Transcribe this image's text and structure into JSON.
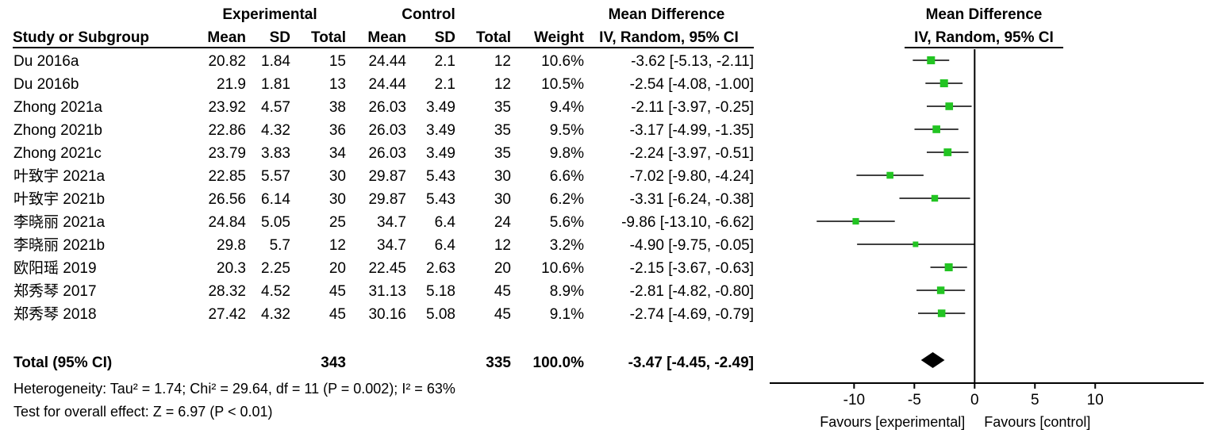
{
  "headers": {
    "experimental": "Experimental",
    "control": "Control",
    "mean_difference": "Mean Difference",
    "plot_title": "Mean Difference",
    "study": "Study or Subgroup",
    "mean": "Mean",
    "sd": "SD",
    "total": "Total",
    "weight": "Weight",
    "method": "IV, Random, 95% CI"
  },
  "studies": [
    {
      "name": "Du 2016a",
      "e_mean": "20.82",
      "e_sd": "1.84",
      "e_total": "15",
      "c_mean": "24.44",
      "c_sd": "2.1",
      "c_total": "12",
      "weight": "10.6%",
      "ci_text": "-3.62 [-5.13, -2.11]"
    },
    {
      "name": "Du 2016b",
      "e_mean": "21.9",
      "e_sd": "1.81",
      "e_total": "13",
      "c_mean": "24.44",
      "c_sd": "2.1",
      "c_total": "12",
      "weight": "10.5%",
      "ci_text": "-2.54 [-4.08, -1.00]"
    },
    {
      "name": "Zhong 2021a",
      "e_mean": "23.92",
      "e_sd": "4.57",
      "e_total": "38",
      "c_mean": "26.03",
      "c_sd": "3.49",
      "c_total": "35",
      "weight": "9.4%",
      "ci_text": "-2.11 [-3.97, -0.25]"
    },
    {
      "name": "Zhong 2021b",
      "e_mean": "22.86",
      "e_sd": "4.32",
      "e_total": "36",
      "c_mean": "26.03",
      "c_sd": "3.49",
      "c_total": "35",
      "weight": "9.5%",
      "ci_text": "-3.17 [-4.99, -1.35]"
    },
    {
      "name": "Zhong 2021c",
      "e_mean": "23.79",
      "e_sd": "3.83",
      "e_total": "34",
      "c_mean": "26.03",
      "c_sd": "3.49",
      "c_total": "35",
      "weight": "9.8%",
      "ci_text": "-2.24 [-3.97, -0.51]"
    },
    {
      "name": "叶致宇 2021a",
      "e_mean": "22.85",
      "e_sd": "5.57",
      "e_total": "30",
      "c_mean": "29.87",
      "c_sd": "5.43",
      "c_total": "30",
      "weight": "6.6%",
      "ci_text": "-7.02 [-9.80, -4.24]"
    },
    {
      "name": "叶致宇 2021b",
      "e_mean": "26.56",
      "e_sd": "6.14",
      "e_total": "30",
      "c_mean": "29.87",
      "c_sd": "5.43",
      "c_total": "30",
      "weight": "6.2%",
      "ci_text": "-3.31 [-6.24, -0.38]"
    },
    {
      "name": "李晓丽 2021a",
      "e_mean": "24.84",
      "e_sd": "5.05",
      "e_total": "25",
      "c_mean": "34.7",
      "c_sd": "6.4",
      "c_total": "24",
      "weight": "5.6%",
      "ci_text": "-9.86 [-13.10, -6.62]"
    },
    {
      "name": "李晓丽 2021b",
      "e_mean": "29.8",
      "e_sd": "5.7",
      "e_total": "12",
      "c_mean": "34.7",
      "c_sd": "6.4",
      "c_total": "12",
      "weight": "3.2%",
      "ci_text": "-4.90 [-9.75, -0.05]"
    },
    {
      "name": "欧阳瑶 2019",
      "e_mean": "20.3",
      "e_sd": "2.25",
      "e_total": "20",
      "c_mean": "22.45",
      "c_sd": "2.63",
      "c_total": "20",
      "weight": "10.6%",
      "ci_text": "-2.15 [-3.67, -0.63]"
    },
    {
      "name": "郑秀琴 2017",
      "e_mean": "28.32",
      "e_sd": "4.52",
      "e_total": "45",
      "c_mean": "31.13",
      "c_sd": "5.18",
      "c_total": "45",
      "weight": "8.9%",
      "ci_text": "-2.81 [-4.82, -0.80]"
    },
    {
      "name": "郑秀琴 2018",
      "e_mean": "27.42",
      "e_sd": "4.32",
      "e_total": "45",
      "c_mean": "30.16",
      "c_sd": "5.08",
      "c_total": "45",
      "weight": "9.1%",
      "ci_text": "-2.74 [-4.69, -0.79]"
    }
  ],
  "total": {
    "label": "Total (95% CI)",
    "e_total": "343",
    "c_total": "335",
    "weight": "100.0%",
    "ci_text": "-3.47 [-4.45, -2.49]"
  },
  "heterogeneity": "Heterogeneity: Tau² = 1.74; Chi² = 29.64, df = 11 (P = 0.002); I² = 63%",
  "overall_effect": "Test for overall effect: Z = 6.97 (P < 0.01)",
  "colors": {
    "marker": "#22c422",
    "diamond": "#000000",
    "line": "#000000"
  },
  "chart_data": {
    "type": "forest",
    "xlim": [
      -17,
      19
    ],
    "ticks": [
      -10,
      -5,
      0,
      5,
      10
    ],
    "tick_labels": [
      "-10",
      "-5",
      "0",
      "5",
      "10"
    ],
    "favours_left": "Favours [experimental]",
    "favours_right": "Favours [control]",
    "studies": [
      {
        "name": "Du 2016a",
        "md": -3.62,
        "lo": -5.13,
        "hi": -2.11,
        "weight": 10.6
      },
      {
        "name": "Du 2016b",
        "md": -2.54,
        "lo": -4.08,
        "hi": -1.0,
        "weight": 10.5
      },
      {
        "name": "Zhong 2021a",
        "md": -2.11,
        "lo": -3.97,
        "hi": -0.25,
        "weight": 9.4
      },
      {
        "name": "Zhong 2021b",
        "md": -3.17,
        "lo": -4.99,
        "hi": -1.35,
        "weight": 9.5
      },
      {
        "name": "Zhong 2021c",
        "md": -2.24,
        "lo": -3.97,
        "hi": -0.51,
        "weight": 9.8
      },
      {
        "name": "叶致宇 2021a",
        "md": -7.02,
        "lo": -9.8,
        "hi": -4.24,
        "weight": 6.6
      },
      {
        "name": "叶致宇 2021b",
        "md": -3.31,
        "lo": -6.24,
        "hi": -0.38,
        "weight": 6.2
      },
      {
        "name": "李晓丽 2021a",
        "md": -9.86,
        "lo": -13.1,
        "hi": -6.62,
        "weight": 5.6
      },
      {
        "name": "李晓丽 2021b",
        "md": -4.9,
        "lo": -9.75,
        "hi": -0.05,
        "weight": 3.2
      },
      {
        "name": "欧阳瑶 2019",
        "md": -2.15,
        "lo": -3.67,
        "hi": -0.63,
        "weight": 10.6
      },
      {
        "name": "郑秀琴 2017",
        "md": -2.81,
        "lo": -4.82,
        "hi": -0.8,
        "weight": 8.9
      },
      {
        "name": "郑秀琴 2018",
        "md": -2.74,
        "lo": -4.69,
        "hi": -0.79,
        "weight": 9.1
      }
    ],
    "pooled": {
      "md": -3.47,
      "lo": -4.45,
      "hi": -2.49
    }
  }
}
